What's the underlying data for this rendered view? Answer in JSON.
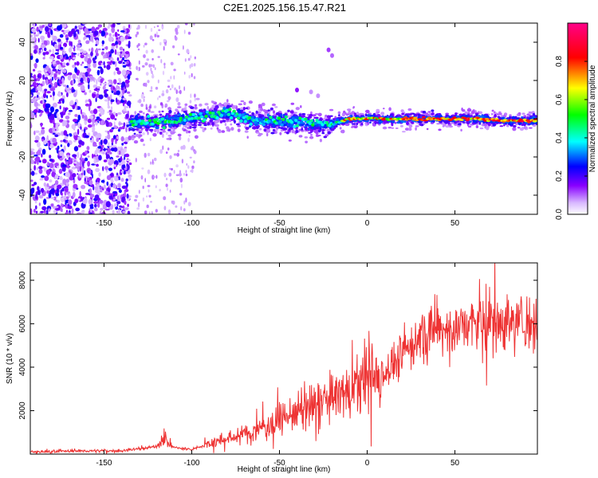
{
  "title": "C2E1.2025.156.15.47.R21",
  "chart_data": [
    {
      "type": "heatmap",
      "xlabel": "Height of straight line (km)",
      "ylabel": "Frequency (Hz)",
      "xlim": [
        -192,
        97
      ],
      "ylim": [
        -50,
        50
      ],
      "xticks": [
        -150,
        -100,
        -50,
        0,
        50
      ],
      "yticks": [
        -40,
        -20,
        0,
        20,
        40
      ],
      "colorbar": {
        "label": "Normalized spectral amplitude",
        "range": [
          0,
          1
        ],
        "ticks": [
          0.0,
          0.2,
          0.4,
          0.6,
          0.8
        ],
        "colors": [
          "#ffffff",
          "#8800ff",
          "#0000ff",
          "#00ffff",
          "#00ff00",
          "#ffff00",
          "#ff0000",
          "#ff0088"
        ]
      },
      "ridge": {
        "x": [
          -135,
          -120,
          -100,
          -80,
          -65,
          -50,
          -35,
          -20,
          -10,
          0,
          20,
          40,
          60,
          80,
          97
        ],
        "y": [
          -2,
          -2,
          0,
          3,
          -1,
          -1,
          -2,
          -3,
          0,
          0,
          0,
          0,
          0,
          -1,
          -1
        ]
      },
      "grid": false
    },
    {
      "type": "line",
      "xlabel": "Height of straight line (km)",
      "ylabel": "SNR (10 * v/v)",
      "xlim": [
        -192,
        97
      ],
      "ylim": [
        0,
        8800
      ],
      "xticks": [
        -150,
        -100,
        -50,
        0,
        50
      ],
      "yticks": [
        2000,
        4000,
        6000,
        8000
      ],
      "series": [
        {
          "color": "#ee3333",
          "x": [
            -192,
            -180,
            -160,
            -140,
            -130,
            -120,
            -116,
            -110,
            -100,
            -90,
            -80,
            -70,
            -60,
            -50,
            -40,
            -30,
            -20,
            -10,
            0,
            10,
            20,
            25,
            30,
            40,
            50,
            60,
            70,
            80,
            90,
            97
          ],
          "y": [
            100,
            120,
            150,
            150,
            250,
            350,
            700,
            300,
            200,
            500,
            700,
            900,
            1200,
            1600,
            1900,
            2200,
            2600,
            2900,
            3300,
            3800,
            4500,
            5000,
            5400,
            5700,
            5800,
            6000,
            6000,
            6100,
            6100,
            6150
          ]
        }
      ],
      "grid": false
    }
  ]
}
